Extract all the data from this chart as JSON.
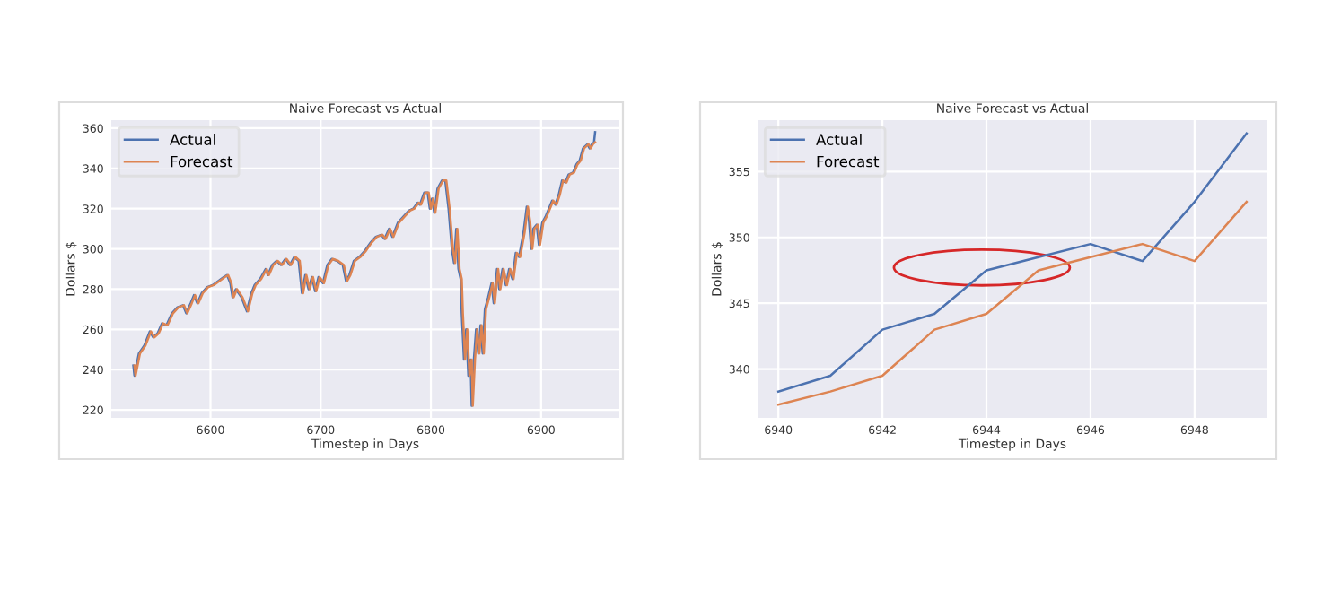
{
  "chart_data": [
    {
      "type": "line",
      "title": "Naive Forecast vs Actual",
      "xlabel": "Timestep in Days",
      "ylabel": "Dollars $",
      "xlim": [
        6510,
        6971
      ],
      "ylim": [
        216,
        364
      ],
      "xticks": [
        6600,
        6700,
        6800,
        6900
      ],
      "yticks": [
        220,
        240,
        260,
        280,
        300,
        320,
        340,
        360
      ],
      "grid": true,
      "legend": "top left",
      "series": [
        {
          "name": "Actual",
          "color": "#4c72b0",
          "x": [
            6530,
            6531,
            6535,
            6540,
            6545,
            6548,
            6552,
            6556,
            6560,
            6565,
            6570,
            6575,
            6578,
            6582,
            6585,
            6588,
            6592,
            6597,
            6602,
            6607,
            6612,
            6615,
            6618,
            6620,
            6623,
            6628,
            6633,
            6637,
            6640,
            6645,
            6650,
            6652,
            6656,
            6660,
            6664,
            6668,
            6672,
            6676,
            6680,
            6683,
            6686,
            6689,
            6692,
            6695,
            6698,
            6702,
            6706,
            6710,
            6715,
            6720,
            6723,
            6726,
            6730,
            6735,
            6740,
            6745,
            6750,
            6755,
            6758,
            6762,
            6765,
            6770,
            6775,
            6780,
            6784,
            6788,
            6790,
            6794,
            6797,
            6799,
            6801,
            6803,
            6806,
            6810,
            6813,
            6816,
            6819,
            6821,
            6823,
            6825,
            6827,
            6828,
            6830,
            6832,
            6834,
            6836,
            6837,
            6839,
            6841,
            6843,
            6845,
            6847,
            6849,
            6852,
            6855,
            6857,
            6860,
            6862,
            6865,
            6868,
            6871,
            6874,
            6877,
            6880,
            6884,
            6887,
            6889,
            6891,
            6893,
            6896,
            6898,
            6901,
            6904,
            6907,
            6910,
            6913,
            6916,
            6919,
            6922,
            6925,
            6929,
            6932,
            6935,
            6938,
            6940,
            6942,
            6944,
            6946,
            6948,
            6949
          ],
          "values": [
            242,
            237,
            248,
            252,
            259,
            256,
            258,
            263,
            262,
            268,
            271,
            272,
            268,
            273,
            277,
            273,
            278,
            281,
            282,
            284,
            286,
            287,
            283,
            276,
            280,
            276,
            269,
            278,
            282,
            285,
            290,
            287,
            292,
            294,
            292,
            295,
            292,
            296,
            294,
            278,
            287,
            280,
            286,
            279,
            286,
            283,
            292,
            295,
            294,
            292,
            284,
            287,
            294,
            296,
            299,
            303,
            306,
            307,
            305,
            310,
            306,
            313,
            316,
            319,
            320,
            323,
            322,
            328,
            328,
            320,
            325,
            318,
            330,
            334,
            334,
            320,
            300,
            293,
            310,
            290,
            285,
            268,
            245,
            260,
            237,
            245,
            222,
            245,
            260,
            248,
            262,
            248,
            270,
            276,
            283,
            273,
            290,
            280,
            290,
            282,
            290,
            285,
            298,
            296,
            308,
            321,
            314,
            300,
            310,
            312,
            302,
            313,
            316,
            320,
            324,
            322,
            327,
            334,
            333,
            337,
            338,
            342,
            344,
            350,
            351,
            352,
            350,
            352,
            353,
            358
          ]
        },
        {
          "name": "Forecast",
          "color": "#dd8452",
          "x": [
            6531,
            6532,
            6536,
            6541,
            6546,
            6549,
            6553,
            6557,
            6561,
            6566,
            6571,
            6576,
            6579,
            6583,
            6586,
            6589,
            6593,
            6598,
            6603,
            6608,
            6613,
            6616,
            6619,
            6621,
            6624,
            6629,
            6634,
            6638,
            6641,
            6646,
            6651,
            6653,
            6657,
            6661,
            6665,
            6669,
            6673,
            6677,
            6681,
            6684,
            6687,
            6690,
            6693,
            6696,
            6699,
            6703,
            6707,
            6711,
            6716,
            6721,
            6724,
            6727,
            6731,
            6736,
            6741,
            6746,
            6751,
            6756,
            6759,
            6763,
            6766,
            6771,
            6776,
            6781,
            6785,
            6789,
            6791,
            6795,
            6798,
            6800,
            6802,
            6804,
            6807,
            6811,
            6814,
            6817,
            6820,
            6822,
            6824,
            6826,
            6828,
            6829,
            6831,
            6833,
            6835,
            6837,
            6838,
            6840,
            6842,
            6844,
            6846,
            6848,
            6850,
            6853,
            6856,
            6858,
            6861,
            6863,
            6866,
            6869,
            6872,
            6875,
            6878,
            6881,
            6885,
            6888,
            6890,
            6892,
            6894,
            6897,
            6899,
            6902,
            6905,
            6908,
            6911,
            6914,
            6917,
            6920,
            6923,
            6926,
            6930,
            6933,
            6936,
            6939,
            6941,
            6943,
            6945,
            6947,
            6949
          ],
          "values": [
            242,
            237,
            248,
            252,
            259,
            256,
            258,
            263,
            262,
            268,
            271,
            272,
            268,
            273,
            277,
            273,
            278,
            281,
            282,
            284,
            286,
            287,
            283,
            276,
            280,
            276,
            269,
            278,
            282,
            285,
            290,
            287,
            292,
            294,
            292,
            295,
            292,
            296,
            294,
            278,
            287,
            280,
            286,
            279,
            286,
            283,
            292,
            295,
            294,
            292,
            284,
            287,
            294,
            296,
            299,
            303,
            306,
            307,
            305,
            310,
            306,
            313,
            316,
            319,
            320,
            323,
            322,
            328,
            328,
            320,
            325,
            318,
            330,
            334,
            334,
            320,
            300,
            293,
            310,
            290,
            285,
            268,
            245,
            260,
            237,
            245,
            222,
            245,
            260,
            248,
            262,
            248,
            270,
            276,
            283,
            273,
            290,
            280,
            290,
            282,
            290,
            285,
            298,
            296,
            308,
            321,
            314,
            300,
            310,
            312,
            302,
            313,
            316,
            320,
            324,
            322,
            327,
            334,
            333,
            337,
            338,
            342,
            344,
            350,
            351,
            352,
            350,
            352,
            353
          ]
        }
      ]
    },
    {
      "type": "line",
      "title": "Naive Forecast vs Actual",
      "xlabel": "Timestep in Days",
      "ylabel": "Dollars $",
      "xlim": [
        6939.6,
        6949.4
      ],
      "ylim": [
        336.3,
        358.9
      ],
      "xticks": [
        6940,
        6942,
        6944,
        6946,
        6948
      ],
      "yticks": [
        340,
        345,
        350,
        355
      ],
      "grid": true,
      "legend": "top left",
      "series": [
        {
          "name": "Actual",
          "color": "#4c72b0",
          "x": [
            6940,
            6941,
            6942,
            6943,
            6944,
            6945,
            6946,
            6947,
            6948,
            6949
          ],
          "values": [
            338.3,
            339.5,
            343.0,
            344.2,
            347.5,
            348.5,
            349.5,
            348.2,
            352.7,
            357.9
          ]
        },
        {
          "name": "Forecast",
          "color": "#dd8452",
          "x": [
            6940,
            6941,
            6942,
            6943,
            6944,
            6945,
            6946,
            6947,
            6948,
            6949
          ],
          "values": [
            337.3,
            338.3,
            339.5,
            343.0,
            344.2,
            347.5,
            348.5,
            349.5,
            348.2,
            352.7
          ]
        }
      ]
    }
  ]
}
